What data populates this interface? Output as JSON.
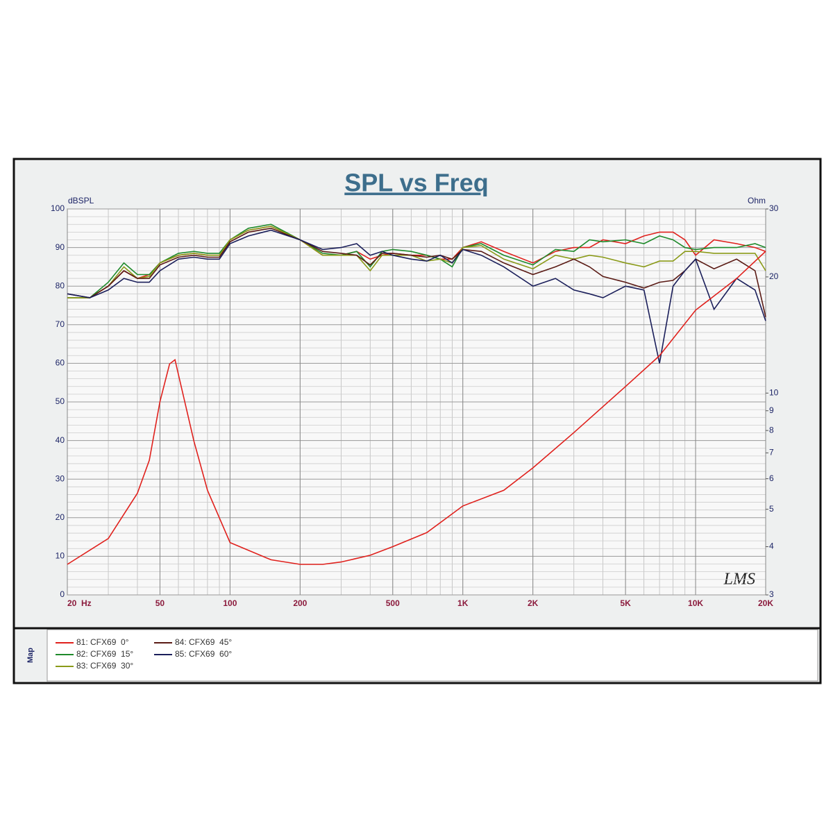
{
  "chart_data": {
    "type": "line",
    "title": "SPL vs Freq",
    "y_label": "dBSPL",
    "y2_label": "Ohm",
    "legend_title": "Map",
    "watermark": "LMS",
    "xlog": true,
    "y2log": true,
    "grid": true,
    "xlim": [
      20,
      20000
    ],
    "ylim": [
      0,
      100
    ],
    "y2lim": [
      3,
      30
    ],
    "xticks": [
      {
        "value": 20,
        "label": "20  Hz"
      },
      50,
      100,
      200,
      500,
      {
        "value": 1000,
        "label": "1K"
      },
      {
        "value": 2000,
        "label": "2K"
      },
      {
        "value": 5000,
        "label": "5K"
      },
      {
        "value": 10000,
        "label": "10K"
      },
      {
        "value": 20000,
        "label": "20K"
      }
    ],
    "yticks": [
      0,
      10,
      20,
      30,
      40,
      50,
      60,
      70,
      80,
      90,
      100
    ],
    "y2ticks": [
      3,
      4,
      5,
      6,
      7,
      8,
      9,
      10,
      20,
      30
    ],
    "x": [
      20,
      25,
      30,
      35,
      40,
      45,
      50,
      60,
      70,
      80,
      90,
      100,
      120,
      150,
      200,
      250,
      300,
      350,
      400,
      450,
      500,
      600,
      700,
      800,
      900,
      1000,
      1200,
      1500,
      2000,
      2500,
      3000,
      3500,
      4000,
      5000,
      6000,
      7000,
      8000,
      9000,
      10000,
      12000,
      15000,
      18000,
      20000
    ],
    "series": [
      {
        "name": "81: CFX69  0°",
        "color": "#e0201c",
        "values": [
          77,
          77,
          80,
          84,
          82,
          83,
          86,
          88,
          88.5,
          88,
          88,
          92,
          94.5,
          95.5,
          92,
          88,
          88,
          89,
          87,
          88,
          88.5,
          88,
          88,
          87,
          87,
          90,
          91.5,
          89,
          86,
          89,
          90,
          90,
          92,
          91,
          93,
          94,
          94,
          92,
          88,
          92,
          91,
          90,
          89
        ]
      },
      {
        "name": "82: CFX69  15°",
        "color": "#1e8a2a",
        "values": [
          77,
          77,
          81,
          86,
          83,
          83,
          86,
          88.5,
          89,
          88.5,
          88.5,
          92,
          95,
          96,
          92,
          88.5,
          88,
          89,
          85,
          89,
          89.5,
          89,
          88,
          87,
          85,
          90,
          91,
          88,
          85.5,
          89.5,
          89,
          92,
          91.5,
          92,
          91,
          93,
          92,
          90,
          89.5,
          90,
          90,
          91,
          90
        ]
      },
      {
        "name": "83: CFX69  30°",
        "color": "#8a9a18",
        "values": [
          77,
          77,
          80,
          85,
          82,
          82.5,
          86,
          88,
          88.5,
          88,
          88,
          92,
          94.5,
          95.5,
          92,
          88,
          88,
          88,
          84,
          88,
          88,
          88,
          86.5,
          87,
          86,
          90,
          90.5,
          87,
          84.5,
          88,
          87,
          88,
          87.5,
          86,
          85,
          86.5,
          86.5,
          89,
          89,
          88.5,
          88.5,
          88.5,
          84
        ]
      },
      {
        "name": "84: CFX69  45°",
        "color": "#5a1a14",
        "values": [
          78,
          77,
          80,
          84,
          82,
          82,
          85.5,
          87.5,
          88,
          87.5,
          87.5,
          91.5,
          94,
          95,
          92,
          89,
          88.5,
          88,
          85.5,
          88.5,
          88.5,
          88,
          87.5,
          88,
          87,
          89.5,
          89,
          86,
          83,
          85,
          87,
          85,
          82.5,
          81,
          79.5,
          81,
          81.5,
          84,
          87,
          84.5,
          87,
          84,
          72
        ]
      },
      {
        "name": "85: CFX69  60°",
        "color": "#1a1e5a",
        "values": [
          78,
          77,
          79,
          82,
          81,
          81,
          84,
          87,
          87.5,
          87,
          87,
          91,
          93,
          94.5,
          92,
          89.5,
          90,
          91,
          88,
          89,
          88,
          87,
          86.5,
          88,
          86,
          89.5,
          88,
          85,
          80,
          82,
          79,
          78,
          77,
          80,
          79,
          60,
          80,
          84,
          87,
          74,
          82,
          79,
          71
        ]
      },
      {
        "color": "#e0201c",
        "axis": "y2",
        "x": [
          20,
          30,
          40,
          45,
          50,
          55,
          58,
          70,
          80,
          100,
          150,
          200,
          250,
          300,
          400,
          500,
          700,
          1000,
          1500,
          2000,
          3000,
          5000,
          7000,
          10000,
          15000,
          20000
        ],
        "values": [
          3.6,
          4.2,
          5.5,
          6.7,
          9.5,
          11.9,
          12.2,
          7.5,
          5.6,
          4.1,
          3.7,
          3.6,
          3.6,
          3.65,
          3.8,
          4.0,
          4.35,
          5.1,
          5.6,
          6.4,
          7.9,
          10.4,
          12.5,
          16.4,
          19.8,
          23.3
        ]
      }
    ]
  }
}
